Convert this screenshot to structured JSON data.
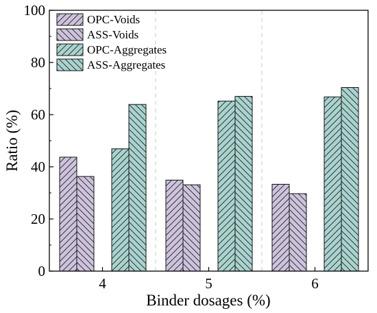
{
  "chart_data": {
    "type": "bar",
    "title": "",
    "xlabel": "Binder dosages (%)",
    "ylabel": "Ratio (%)",
    "categories": [
      "4",
      "5",
      "6"
    ],
    "ylim": [
      0,
      100
    ],
    "yticks": [
      "0",
      "20",
      "40",
      "60",
      "80",
      "100"
    ],
    "grid": false,
    "category_separators": "dashed vertical lines",
    "legend_position": "top-left",
    "series": [
      {
        "name": "OPC-Voids",
        "values": [
          43.7,
          34.9,
          33.3
        ],
        "fill": "#cdc3dd",
        "hatch": "forward-diagonal"
      },
      {
        "name": "ASS-Voids",
        "values": [
          36.3,
          33.1,
          29.7
        ],
        "fill": "#cdc3dd",
        "hatch": "back-diagonal"
      },
      {
        "name": "OPC-Aggregates",
        "values": [
          46.9,
          65.2,
          66.8
        ],
        "fill": "#a9d3cf",
        "hatch": "forward-diagonal"
      },
      {
        "name": "ASS-Aggregates",
        "values": [
          63.9,
          67.0,
          70.4
        ],
        "fill": "#a9d3cf",
        "hatch": "back-diagonal"
      }
    ]
  }
}
